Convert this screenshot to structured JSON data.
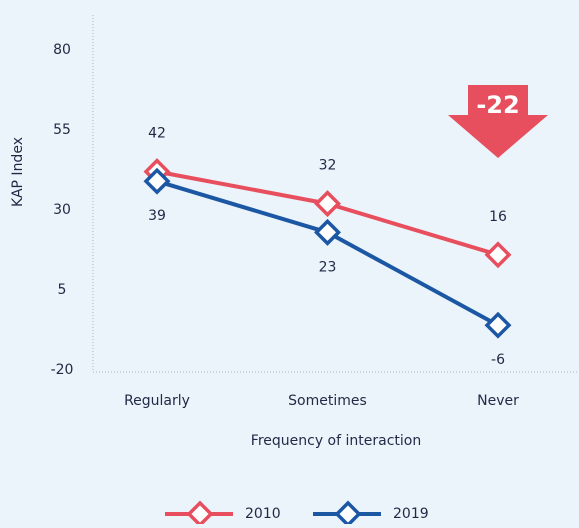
{
  "chart_data": {
    "type": "line",
    "x_label": "Frequency of interaction",
    "y_label": "KAP Index",
    "categories": [
      "Regularly",
      "Sometimes",
      "Never"
    ],
    "series": [
      {
        "name": "2010",
        "color": "#e84f5e",
        "values": [
          42,
          32,
          16
        ]
      },
      {
        "name": "2019",
        "color": "#1b57a3",
        "values": [
          39,
          23,
          -6
        ]
      }
    ],
    "ylim": [
      -20,
      90
    ],
    "yticks": [
      -20,
      5,
      30,
      55,
      80
    ],
    "annotations": [
      {
        "text": "-22",
        "color": "#e84f5e"
      }
    ],
    "grid": false
  }
}
